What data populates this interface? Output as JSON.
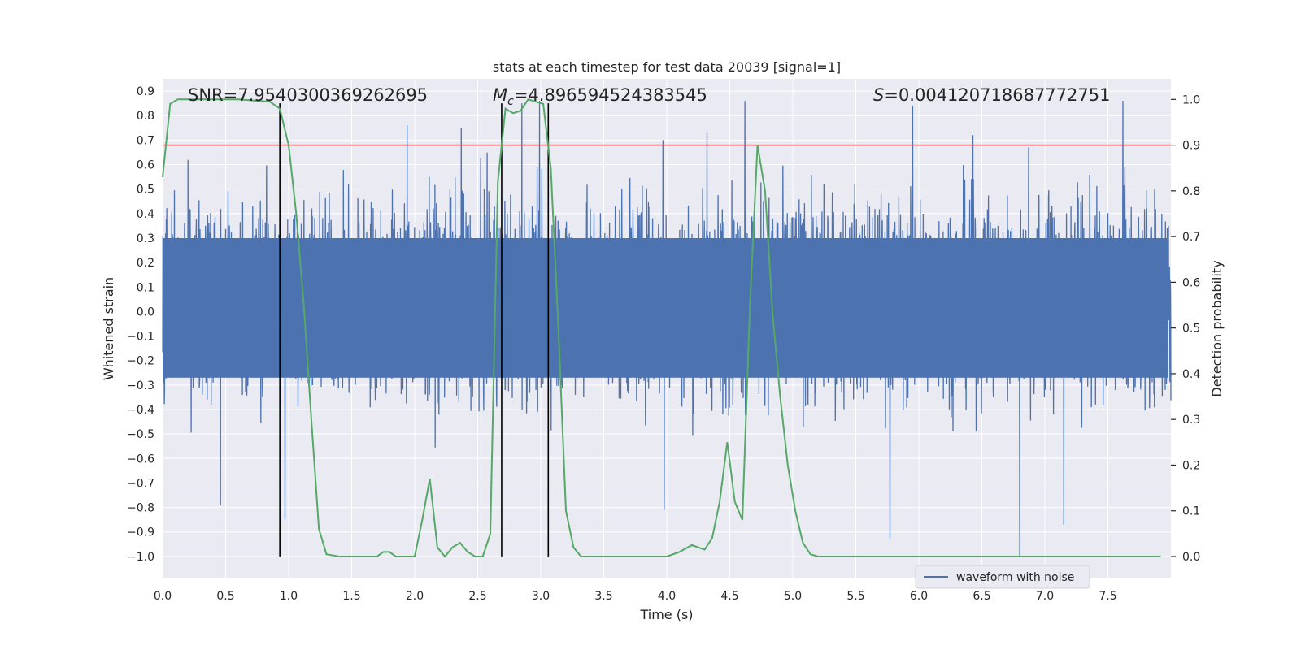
{
  "chart_data": {
    "type": "line",
    "title": "stats at each timestep for test data 20039 [signal=1]",
    "xlabel": "Time (s)",
    "ylabel_left": "Whitened strain",
    "ylabel_right": "Detection probability",
    "xlim": [
      0.0,
      8.0
    ],
    "ylim_left": [
      -1.09,
      0.95
    ],
    "ylim_right": [
      -0.048,
      1.045
    ],
    "x_ticks": [
      "0.0",
      "0.5",
      "1.0",
      "1.5",
      "2.0",
      "2.5",
      "3.0",
      "3.5",
      "4.0",
      "4.5",
      "5.0",
      "5.5",
      "6.0",
      "6.5",
      "7.0",
      "7.5"
    ],
    "x_tick_values": [
      0.0,
      0.5,
      1.0,
      1.5,
      2.0,
      2.5,
      3.0,
      3.5,
      4.0,
      4.5,
      5.0,
      5.5,
      6.0,
      6.5,
      7.0,
      7.5
    ],
    "y_left_ticks": [
      "0.9",
      "0.8",
      "0.7",
      "0.6",
      "0.5",
      "0.4",
      "0.3",
      "0.2",
      "0.1",
      "0.0",
      "−0.1",
      "−0.2",
      "−0.3",
      "−0.4",
      "−0.5",
      "−0.6",
      "−0.7",
      "−0.8",
      "−0.9",
      "−1.0"
    ],
    "y_left_tick_values": [
      0.9,
      0.8,
      0.7,
      0.6,
      0.5,
      0.4,
      0.3,
      0.2,
      0.1,
      0.0,
      -0.1,
      -0.2,
      -0.3,
      -0.4,
      -0.5,
      -0.6,
      -0.7,
      -0.8,
      -0.9,
      -1.0
    ],
    "y_right_ticks": [
      "1.0",
      "0.9",
      "0.8",
      "0.7",
      "0.6",
      "0.5",
      "0.4",
      "0.3",
      "0.2",
      "0.1",
      "0.0"
    ],
    "y_right_tick_values": [
      1.0,
      0.9,
      0.8,
      0.7,
      0.6,
      0.5,
      0.4,
      0.3,
      0.2,
      0.1,
      0.0
    ],
    "annotations": {
      "snr": "SNR=7.954030036926269​5",
      "mc_symbol": "M",
      "mc_sub": "c",
      "mc_value": "=4.896594524383545",
      "s_symbol": "S",
      "s_value": "=0.004120718687772751"
    },
    "threshold": 0.9,
    "vertical_lines_x": [
      0.93,
      2.69,
      3.06
    ],
    "vertical_lines_y_top": 0.85,
    "probability_series": {
      "name": "detection probability",
      "x": [
        0.0,
        0.06,
        0.12,
        0.3,
        0.6,
        0.85,
        0.93,
        1.0,
        1.06,
        1.12,
        1.18,
        1.24,
        1.3,
        1.4,
        1.5,
        1.6,
        1.7,
        1.75,
        1.8,
        1.85,
        1.9,
        1.95,
        2.0,
        2.06,
        2.12,
        2.18,
        2.24,
        2.3,
        2.36,
        2.42,
        2.48,
        2.54,
        2.6,
        2.66,
        2.72,
        2.78,
        2.84,
        2.9,
        2.96,
        3.02,
        3.08,
        3.14,
        3.2,
        3.26,
        3.32,
        3.4,
        3.5,
        3.6,
        3.7,
        3.8,
        3.9,
        4.0,
        4.1,
        4.2,
        4.3,
        4.36,
        4.42,
        4.48,
        4.54,
        4.6,
        4.66,
        4.72,
        4.78,
        4.84,
        4.9,
        4.96,
        5.02,
        5.08,
        5.14,
        5.2,
        5.4,
        5.6,
        5.8,
        6.0,
        6.2,
        6.4,
        6.6,
        6.8,
        7.0,
        7.2,
        7.4,
        7.6,
        7.8,
        7.92
      ],
      "values": [
        0.83,
        0.99,
        1.0,
        1.0,
        1.0,
        0.995,
        0.98,
        0.9,
        0.75,
        0.55,
        0.3,
        0.06,
        0.005,
        0.0,
        0.0,
        0.0,
        0.0,
        0.01,
        0.01,
        0.0,
        0.0,
        0.0,
        0.0,
        0.08,
        0.17,
        0.02,
        0.0,
        0.02,
        0.03,
        0.01,
        0.0,
        0.0,
        0.05,
        0.82,
        0.98,
        0.97,
        0.975,
        1.0,
        0.995,
        0.99,
        0.85,
        0.5,
        0.1,
        0.02,
        0.0,
        0.0,
        0.0,
        0.0,
        0.0,
        0.0,
        0.0,
        0.0,
        0.01,
        0.025,
        0.015,
        0.04,
        0.12,
        0.25,
        0.12,
        0.08,
        0.55,
        0.9,
        0.8,
        0.53,
        0.35,
        0.2,
        0.1,
        0.03,
        0.005,
        0.0,
        0.0,
        0.0,
        0.0,
        0.0,
        0.0,
        0.0,
        0.0,
        0.0,
        0.0,
        0.0,
        0.0,
        0.0,
        0.0,
        0.0
      ]
    },
    "waveform_series": {
      "name": "waveform with noise",
      "x_range": [
        0.0,
        8.0
      ],
      "envelope_upper": 0.55,
      "envelope_lower": -0.45,
      "peak_positive": [
        0.86,
        0.86,
        0.85,
        0.84,
        0.76,
        0.75,
        0.73,
        0.72,
        0.7,
        0.67,
        0.86
      ],
      "peak_positive_x": [
        4.62,
        7.62,
        2.85,
        5.95,
        1.94,
        2.37,
        4.32,
        6.43,
        3.97,
        6.87,
        2.99
      ],
      "peak_negative": [
        -1.0,
        -0.93,
        -0.87,
        -0.85,
        -0.81,
        -0.79
      ],
      "peak_negative_x": [
        6.8,
        5.77,
        7.15,
        0.97,
        3.98,
        0.46
      ]
    },
    "legend": {
      "label": "waveform with noise",
      "position": "lower-right"
    },
    "colors": {
      "background": "#eaeaf2",
      "grid": "#ffffff",
      "waveform": "#4c72b0",
      "probability": "#55a868",
      "threshold": "#c44e52",
      "vline": "#000000",
      "text": "#262626"
    },
    "grid": true
  }
}
